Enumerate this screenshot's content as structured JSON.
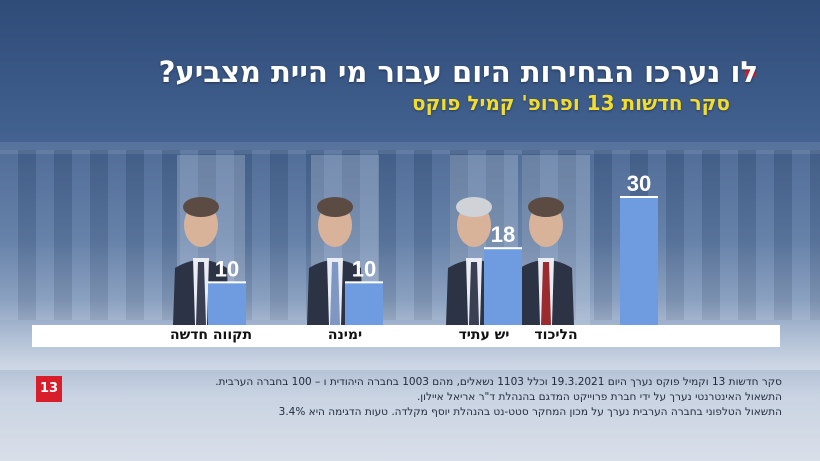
{
  "header": {
    "title": "לו נערכו הבחירות היום עבור מי היית מצביע?",
    "subtitle": "סקר חדשות 13 ופרופ' קמיל פוקס"
  },
  "chart_data": {
    "type": "bar",
    "categories": [
      "הליכוד",
      "יש עתיד",
      "ימינה",
      "תקווה חדשה"
    ],
    "values": [
      30,
      18,
      10,
      10
    ],
    "title": "לו נערכו הבחירות היום עבור מי היית מצביע?",
    "subtitle": "סקר חדשות 13 ופרופ' קמיל פוקס",
    "ylim": [
      0,
      30
    ],
    "grid": false,
    "bar_color": "#6f9ce0"
  },
  "footnotes": [
    "סקר חדשות 13 וקמיל פוקס נערך היום 19.3.2021 וכלל 1103 נשאלים, מהם 1003 בחברה היהודית ו – 100 בחברה הערבית.",
    "התשאול  האינטרנטי נערך על ידי חברת פרוייקט המדגם בהנהלת  ד\"ר אריאל איילון.",
    "התשאול  הטלפוני בחברה הערבית נערך על מכון המחקר סטט-נט בהנהלת יוסף מקלדה. טעות הדגימה היא 3.4%"
  ],
  "logo": {
    "text": "13"
  },
  "colors": {
    "accent": "#d81e2b",
    "subtitle": "#f4dc2c",
    "bar": "#6f9ce0"
  }
}
